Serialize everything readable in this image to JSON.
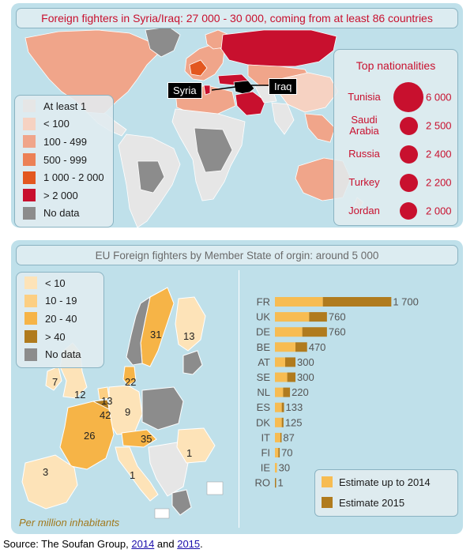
{
  "world_panel": {
    "title": "Foreign fighters in Syria/Iraq: 27 000 - 30 000, coming from at least 86 countries",
    "legend": [
      {
        "label": "At least 1",
        "color": "#e6e6e6"
      },
      {
        "label": "< 100",
        "color": "#f6d2c2"
      },
      {
        "label": "100 - 499",
        "color": "#f0a58a"
      },
      {
        "label": "500 - 999",
        "color": "#ec8156"
      },
      {
        "label": "1 000 - 2 000",
        "color": "#e3571f"
      },
      {
        "label": "> 2 000",
        "color": "#c8102e"
      },
      {
        "label": "No data",
        "color": "#8c8c8c"
      }
    ],
    "callouts": {
      "syria": "Syria",
      "iraq": "Iraq"
    },
    "top_nationalities": {
      "title": "Top nationalities",
      "items": [
        {
          "name": "Tunisia",
          "value": 6000,
          "value_label": "6 000"
        },
        {
          "name": "Saudi Arabia",
          "value": 2500,
          "value_label": "2 500"
        },
        {
          "name": "Russia",
          "value": 2400,
          "value_label": "2 400"
        },
        {
          "name": "Turkey",
          "value": 2200,
          "value_label": "2 200"
        },
        {
          "name": "Jordan",
          "value": 2000,
          "value_label": "2 000"
        }
      ]
    }
  },
  "eu_panel": {
    "title": "EU Foreign fighters by Member State of orgin: around 5 000",
    "legend": [
      {
        "label": "< 10",
        "color": "#fde3b8"
      },
      {
        "label": "10 - 19",
        "color": "#fccf83"
      },
      {
        "label": "20 - 40",
        "color": "#f6b447"
      },
      {
        "label": "> 40",
        "color": "#b07b1e"
      },
      {
        "label": "No data",
        "color": "#8c8c8c"
      }
    ],
    "map_labels": [
      {
        "code": "SE",
        "text": "31"
      },
      {
        "code": "FI",
        "text": "13"
      },
      {
        "code": "IE",
        "text": "7"
      },
      {
        "code": "UK",
        "text": "12"
      },
      {
        "code": "DK",
        "text": "22"
      },
      {
        "code": "NL",
        "text": "13"
      },
      {
        "code": "BE",
        "text": "42"
      },
      {
        "code": "DE",
        "text": "9"
      },
      {
        "code": "FR",
        "text": "26"
      },
      {
        "code": "AT",
        "text": "35"
      },
      {
        "code": "ES",
        "text": "3"
      },
      {
        "code": "IT",
        "text": "1"
      },
      {
        "code": "RO",
        "text": "1"
      }
    ],
    "per_million": "Per million inhabitants",
    "bar_legend": [
      {
        "label": "Estimate up to 2014",
        "color": "#f7bc52"
      },
      {
        "label": "Estimate 2015",
        "color": "#b07b1e"
      }
    ]
  },
  "chart_data": {
    "type": "bar",
    "orientation": "horizontal",
    "stacked": true,
    "categories": [
      "FR",
      "UK",
      "DE",
      "BE",
      "AT",
      "SE",
      "NL",
      "ES",
      "DK",
      "IT",
      "FI",
      "IE",
      "RO"
    ],
    "value_labels": [
      "1 700",
      "760",
      "760",
      "470",
      "300",
      "300",
      "220",
      "133",
      "125",
      "87",
      "70",
      "30",
      "1"
    ],
    "series": [
      {
        "name": "Estimate up to 2014",
        "values": [
          700,
          500,
          400,
          300,
          150,
          180,
          120,
          100,
          100,
          80,
          50,
          30,
          0
        ]
      },
      {
        "name": "Estimate 2015",
        "values": [
          1000,
          260,
          360,
          170,
          150,
          120,
          100,
          33,
          25,
          7,
          20,
          0,
          1
        ]
      }
    ],
    "xlim": [
      0,
      1800
    ]
  },
  "source": {
    "prefix": "Source: The Soufan Group, ",
    "link1": "2014",
    "middle": " and ",
    "link2": "2015",
    "suffix": "."
  }
}
